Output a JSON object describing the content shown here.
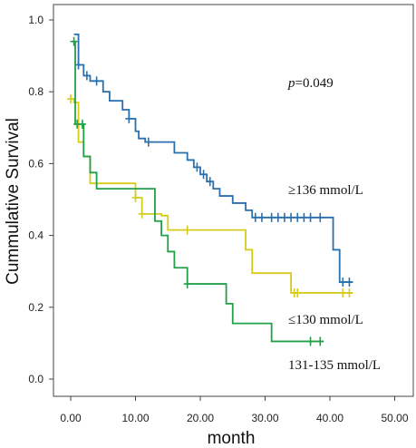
{
  "chart_data": {
    "type": "line",
    "xlabel": "month",
    "ylabel": "Cummulative Survival",
    "xlim": [
      0,
      50
    ],
    "ylim": [
      0,
      1.0
    ],
    "x_ticks": [
      "0.00",
      "10.00",
      "20.00",
      "30.00",
      "40.00",
      "50.00"
    ],
    "y_ticks": [
      "0.0",
      "0.2",
      "0.4",
      "0.6",
      "0.8",
      "1.0"
    ],
    "grid": false,
    "p_label": "p",
    "p_value": "=0.049",
    "series": [
      {
        "name": "≥136 mmol/L",
        "color": "#2a6fae",
        "steps": [
          [
            0.5,
            0.96
          ],
          [
            1.2,
            0.875
          ],
          [
            2,
            0.845
          ],
          [
            3,
            0.83
          ],
          [
            5,
            0.8
          ],
          [
            6,
            0.775
          ],
          [
            8,
            0.75
          ],
          [
            9,
            0.725
          ],
          [
            10,
            0.69
          ],
          [
            10.5,
            0.67
          ],
          [
            11.5,
            0.66
          ],
          [
            16,
            0.63
          ],
          [
            18,
            0.61
          ],
          [
            19,
            0.59
          ],
          [
            20,
            0.57
          ],
          [
            21,
            0.55
          ],
          [
            22,
            0.53
          ],
          [
            23,
            0.51
          ],
          [
            25,
            0.49
          ],
          [
            27,
            0.47
          ],
          [
            28,
            0.45
          ],
          [
            40.5,
            0.36
          ],
          [
            41.5,
            0.27
          ],
          [
            43.5,
            0.27
          ]
        ],
        "censored": [
          [
            1.2,
            0.875
          ],
          [
            2.5,
            0.845
          ],
          [
            4,
            0.83
          ],
          [
            9,
            0.725
          ],
          [
            12,
            0.66
          ],
          [
            19.5,
            0.59
          ],
          [
            20.5,
            0.57
          ],
          [
            21.5,
            0.55
          ],
          [
            28.5,
            0.45
          ],
          [
            29.5,
            0.45
          ],
          [
            31,
            0.45
          ],
          [
            32,
            0.45
          ],
          [
            33,
            0.45
          ],
          [
            34,
            0.45
          ],
          [
            35,
            0.45
          ],
          [
            36,
            0.45
          ],
          [
            37,
            0.45
          ],
          [
            38.5,
            0.45
          ],
          [
            42,
            0.27
          ],
          [
            43,
            0.27
          ]
        ]
      },
      {
        "name": "≤130 mmol/L",
        "color": "#d6cc1c",
        "steps": [
          [
            0,
            0.78
          ],
          [
            0.5,
            0.77
          ],
          [
            1.2,
            0.66
          ],
          [
            2,
            0.62
          ],
          [
            3,
            0.545
          ],
          [
            10,
            0.505
          ],
          [
            11,
            0.46
          ],
          [
            14,
            0.455
          ],
          [
            15,
            0.415
          ],
          [
            27,
            0.36
          ],
          [
            28,
            0.295
          ],
          [
            34,
            0.24
          ],
          [
            43.5,
            0.24
          ]
        ],
        "censored": [
          [
            0,
            0.78
          ],
          [
            10,
            0.505
          ],
          [
            11,
            0.46
          ],
          [
            18,
            0.415
          ],
          [
            34.5,
            0.24
          ],
          [
            35,
            0.24
          ],
          [
            42,
            0.24
          ],
          [
            43,
            0.24
          ]
        ]
      },
      {
        "name": "131-135 mmol/L",
        "color": "#22a048",
        "steps": [
          [
            0.3,
            0.94
          ],
          [
            0.7,
            0.71
          ],
          [
            2,
            0.62
          ],
          [
            3,
            0.575
          ],
          [
            4,
            0.53
          ],
          [
            13,
            0.44
          ],
          [
            14,
            0.4
          ],
          [
            15,
            0.355
          ],
          [
            16,
            0.31
          ],
          [
            18,
            0.265
          ],
          [
            24,
            0.21
          ],
          [
            25,
            0.155
          ],
          [
            31,
            0.105
          ],
          [
            39,
            0.105
          ]
        ],
        "censored": [
          [
            1,
            0.71
          ],
          [
            1.8,
            0.71
          ],
          [
            0.5,
            0.94
          ],
          [
            18,
            0.265
          ],
          [
            37,
            0.105
          ],
          [
            38.5,
            0.105
          ]
        ]
      }
    ]
  }
}
